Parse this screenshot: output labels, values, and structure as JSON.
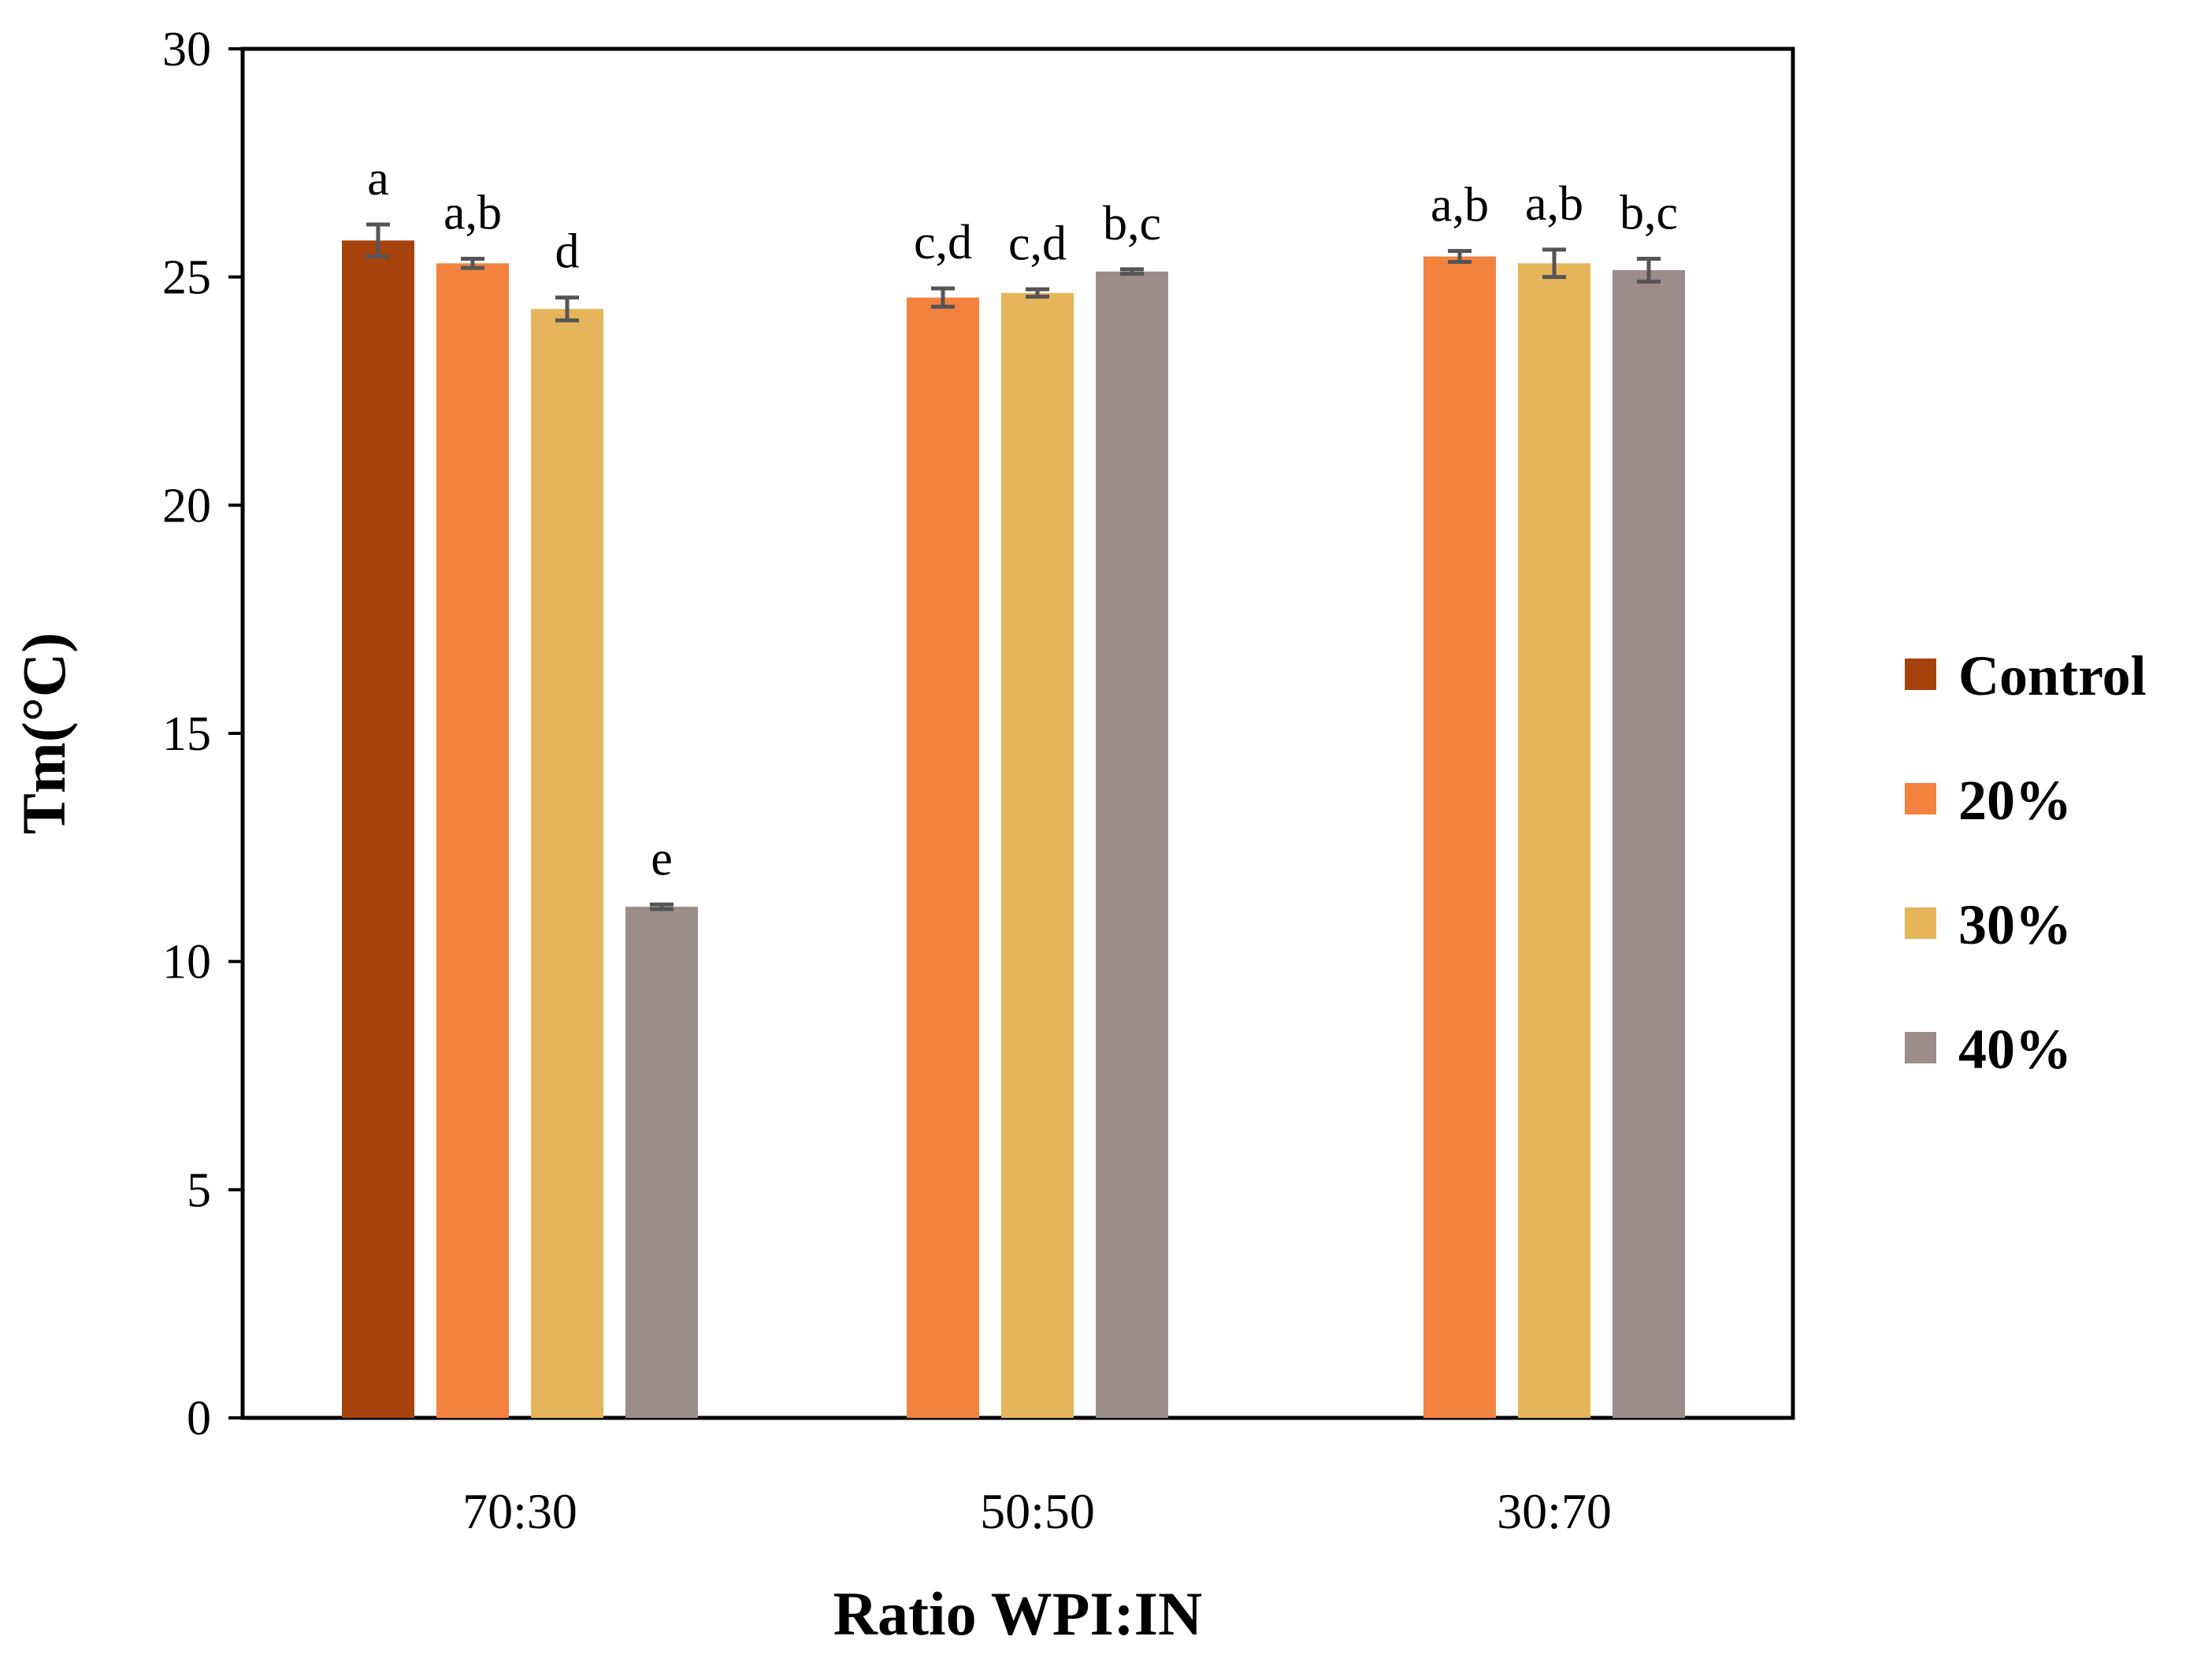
{
  "chart_data": {
    "type": "bar",
    "title": "",
    "xlabel": "Ratio WPI:IN",
    "ylabel": "Tm(°C)",
    "ylim": [
      0,
      30
    ],
    "yticks": [
      0,
      5,
      10,
      15,
      20,
      25,
      30
    ],
    "grid": false,
    "legend_position": "right",
    "categories": [
      "70:30",
      "50:50",
      "30:70"
    ],
    "series": [
      {
        "name": "Control",
        "color": "#A6430C",
        "values": [
          25.8,
          null,
          null
        ],
        "errors": [
          0.35,
          null,
          null
        ],
        "labels": [
          "a",
          null,
          null
        ]
      },
      {
        "name": "20%",
        "color": "#F4823F",
        "values": [
          25.3,
          24.55,
          25.45
        ],
        "errors": [
          0.1,
          0.2,
          0.12
        ],
        "labels": [
          "a,b",
          "c,d",
          "a,b"
        ]
      },
      {
        "name": "30%",
        "color": "#E6B45A",
        "values": [
          24.3,
          24.65,
          25.3
        ],
        "errors": [
          0.25,
          0.08,
          0.3
        ],
        "labels": [
          "d",
          "c,d",
          "a,b"
        ]
      },
      {
        "name": "40%",
        "color": "#9C8C8A",
        "values": [
          11.2,
          25.12,
          25.15
        ],
        "errors": [
          0.05,
          0.05,
          0.25
        ],
        "labels": [
          "e",
          "b,c",
          "b,c"
        ]
      }
    ]
  }
}
